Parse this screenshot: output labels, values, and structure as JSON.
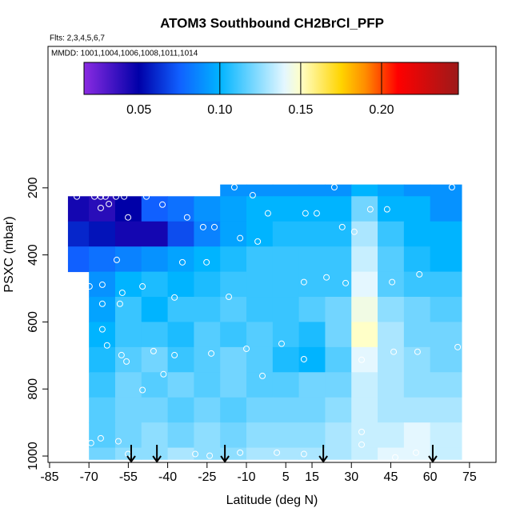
{
  "chart_data": {
    "type": "curtain",
    "title": "ATOM3 Southbound CH2BrCl_PFP",
    "subtitle": "Flts: 2,3,4,5,6,7",
    "annotation": "MMDD: 1001,1004,1006,1008,1011,1014",
    "xlabel": "Latitude (deg N)",
    "ylabel": "PSXC (mbar)",
    "xlim": [
      -85.6,
      85.1
    ],
    "xticks": [
      -85,
      -70,
      -55,
      -40,
      -25,
      -10,
      5,
      15,
      30,
      45,
      60,
      75
    ],
    "ylim": [
      1019,
      -222
    ],
    "yticks": [
      200,
      400,
      600,
      800,
      1000
    ],
    "lat_edges": [
      -78,
      -70,
      -60,
      -50,
      -40,
      -30,
      -20,
      -10,
      0,
      10,
      20,
      30,
      40,
      50,
      60,
      72
    ],
    "pressure_edges": [
      190,
      225,
      300,
      375,
      450,
      525,
      600,
      675,
      750,
      825,
      900,
      975,
      1010
    ],
    "values": [
      [
        null,
        null,
        null,
        null,
        null,
        null,
        0.09,
        0.09,
        0.09,
        0.09,
        0.09,
        0.1,
        0.095,
        0.09,
        0.09
      ],
      [
        0.045,
        0.04,
        0.05,
        0.075,
        0.08,
        0.09,
        0.095,
        0.1,
        0.1,
        0.1,
        0.1,
        0.12,
        0.1,
        0.1,
        0.09
      ],
      [
        0.06,
        0.055,
        0.045,
        0.045,
        0.07,
        0.085,
        0.095,
        0.1,
        0.105,
        0.105,
        0.105,
        0.13,
        0.11,
        0.1,
        0.1
      ],
      [
        0.075,
        0.08,
        0.085,
        0.09,
        0.095,
        0.1,
        0.105,
        0.11,
        0.11,
        0.11,
        0.11,
        0.135,
        0.115,
        0.105,
        0.1
      ],
      [
        null,
        0.09,
        0.1,
        0.105,
        0.1,
        0.105,
        0.11,
        0.11,
        0.11,
        0.11,
        0.11,
        0.14,
        0.115,
        0.11,
        0.11
      ],
      [
        null,
        0.095,
        0.11,
        0.1,
        0.11,
        0.11,
        0.115,
        0.11,
        0.11,
        0.115,
        0.12,
        0.145,
        0.125,
        0.12,
        0.115
      ],
      [
        null,
        0.1,
        0.11,
        0.11,
        0.105,
        0.115,
        0.11,
        0.115,
        0.11,
        0.105,
        0.12,
        0.15,
        0.13,
        0.12,
        0.12
      ],
      [
        null,
        0.105,
        0.115,
        0.12,
        0.11,
        0.115,
        0.12,
        0.115,
        0.105,
        0.1,
        0.115,
        0.14,
        0.13,
        0.125,
        0.12
      ],
      [
        null,
        0.11,
        0.12,
        0.115,
        0.12,
        0.115,
        0.12,
        0.115,
        0.115,
        0.12,
        0.12,
        0.135,
        0.13,
        0.125,
        0.125
      ],
      [
        null,
        0.115,
        0.12,
        0.12,
        0.115,
        0.12,
        0.115,
        0.12,
        0.12,
        0.12,
        0.125,
        0.135,
        0.13,
        0.13,
        0.13
      ],
      [
        null,
        0.115,
        0.12,
        0.125,
        0.12,
        0.125,
        0.12,
        0.125,
        0.125,
        0.125,
        0.13,
        0.135,
        0.135,
        0.14,
        0.135
      ],
      [
        null,
        0.12,
        0.125,
        0.125,
        0.13,
        0.125,
        0.125,
        0.13,
        0.13,
        0.13,
        0.13,
        0.135,
        0.14,
        0.14,
        0.135
      ]
    ],
    "clim": [
      0.016,
      0.2475
    ],
    "cticks": [
      {
        "value": 0.05,
        "label": "0.05"
      },
      {
        "value": 0.1,
        "label": "0.10"
      },
      {
        "value": 0.15,
        "label": "0.15"
      },
      {
        "value": 0.2,
        "label": "0.20"
      }
    ],
    "colormap": [
      {
        "value": 0.016,
        "color": "#8a2be2"
      },
      {
        "value": 0.05,
        "color": "#0000a8"
      },
      {
        "value": 0.075,
        "color": "#1060ff"
      },
      {
        "value": 0.1,
        "color": "#00b4ff"
      },
      {
        "value": 0.14,
        "color": "#e4f7ff"
      },
      {
        "value": 0.15,
        "color": "#ffffc8"
      },
      {
        "value": 0.175,
        "color": "#ffd400"
      },
      {
        "value": 0.19,
        "color": "#ff8c00"
      },
      {
        "value": 0.21,
        "color": "#ff0000"
      },
      {
        "value": 0.2475,
        "color": "#9c1a1a"
      }
    ],
    "samples": {
      "x": [
        -79.5,
        -74.6,
        -67.9,
        -65.5,
        -63.7,
        -59.7,
        -56.6,
        -48.1,
        -62.4,
        -65.5,
        -55.1,
        -42,
        -32.6,
        -26.5,
        -22.2,
        -14.6,
        -7.6,
        -1.8,
        12.5,
        16.8,
        23.5,
        26.5,
        31.1,
        37.2,
        43.6,
        68.3,
        -12.4,
        -5.7,
        -59.4,
        -34.4,
        -25.2,
        11.9,
        20.5,
        27.8,
        45.5,
        55.9,
        -69.8,
        -64.9,
        -57.3,
        -49.6,
        -37.4,
        -16.7,
        -64.9,
        -58.2,
        -64.9,
        -63.1,
        -57.6,
        -45.4,
        -37.4,
        -23.4,
        -10,
        3.4,
        11.9,
        33.9,
        46.1,
        55.2,
        70.5,
        -55.7,
        -49.6,
        -41.6,
        -3.9,
        -69.2,
        -65.5,
        -58.8,
        -55.1,
        -29.5,
        -24,
        -12.4,
        1.6,
        11.9,
        33.9,
        33.9,
        46.7,
        54.6
      ],
      "y": [
        226,
        226,
        226,
        226,
        226,
        226,
        226,
        226,
        248,
        260,
        288,
        250,
        288,
        317,
        317,
        198,
        222,
        276,
        276,
        276,
        198,
        317,
        331,
        264,
        264,
        198,
        350,
        360,
        415,
        422,
        422,
        481,
        467,
        484,
        481,
        458,
        494,
        489,
        513,
        494,
        527,
        525,
        546,
        546,
        622,
        670,
        699,
        687,
        699,
        694,
        680,
        665,
        711,
        713,
        689,
        689,
        675,
        718,
        803,
        756,
        761,
        961,
        947,
        956,
        994,
        994,
        999,
        990,
        990,
        994,
        928,
        966,
        1004,
        990
      ]
    },
    "arrow_lats": [
      -53.9,
      -44.1,
      -18.2,
      19.3,
      61.0
    ]
  }
}
